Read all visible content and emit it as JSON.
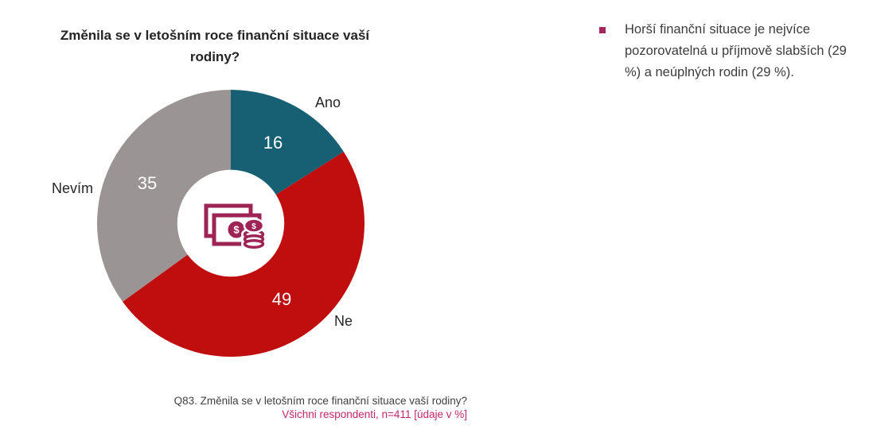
{
  "title": "Změnila se v letošním roce finanční situace vaší rodiny?",
  "bullet": {
    "marker_color": "#A3275E",
    "text": "Horší finanční situace je nejvíce pozorovatelná u příjmově slabších (29 %) a neúplných rodin (29 %)."
  },
  "footnote": {
    "line1": "Q83. Změnila se v letošním roce finanční situace vaší rodiny?",
    "line2": "Všichni respondenti, n=411 [údaje v %]",
    "line2_color": "#C4256A"
  },
  "chart_data": {
    "type": "pie",
    "subtype": "donut",
    "title": "Změnila se v letošním roce finanční situace vaší rodiny?",
    "categories": [
      "Ano",
      "Ne",
      "Nevím"
    ],
    "values": [
      16,
      49,
      35
    ],
    "unit": "%",
    "colors": [
      "#176073",
      "#C00D0D",
      "#9B9495"
    ],
    "start_angle_deg": 0,
    "direction": "clockwise",
    "inner_radius_ratio": 0.4,
    "value_label_color": "#FFFFFF",
    "center_icon": "money-icon",
    "center_icon_color": "#9E2456",
    "legend": "none"
  }
}
